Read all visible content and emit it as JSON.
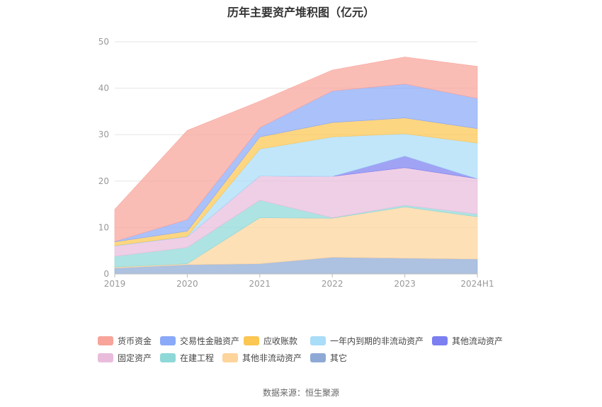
{
  "chart_data": {
    "type": "area",
    "stacked": true,
    "title": "历年主要资产堆积图（亿元）",
    "categories": [
      "2019",
      "2020",
      "2021",
      "2022",
      "2023",
      "2024H1"
    ],
    "ylim": [
      0,
      50
    ],
    "yticks": [
      0,
      10,
      20,
      30,
      40,
      50
    ],
    "grid": true,
    "legend_position": "bottom",
    "series": [
      {
        "name": "其它",
        "color": "#8ea9d6",
        "values": [
          1.3,
          2.0,
          2.2,
          3.6,
          3.4,
          3.2
        ]
      },
      {
        "name": "其他非流动资产",
        "color": "#fdd49b",
        "values": [
          0.2,
          0.2,
          9.9,
          8.4,
          11.0,
          9.1
        ]
      },
      {
        "name": "在建工程",
        "color": "#8ed8d8",
        "values": [
          2.3,
          3.5,
          3.8,
          0.1,
          0.4,
          0.6
        ]
      },
      {
        "name": "固定资产",
        "color": "#e9bcdc",
        "values": [
          2.2,
          2.3,
          5.2,
          8.9,
          8.1,
          7.6
        ]
      },
      {
        "name": "其他流动资产",
        "color": "#7b7ff0",
        "values": [
          0.0,
          0.0,
          0.0,
          0.0,
          2.5,
          0.0
        ]
      },
      {
        "name": "一年内到期的非流动资产",
        "color": "#a9ddf8",
        "values": [
          0.1,
          0.1,
          5.8,
          8.5,
          4.8,
          7.7
        ]
      },
      {
        "name": "应收账款",
        "color": "#fcc652",
        "values": [
          0.8,
          1.1,
          2.6,
          3.1,
          3.4,
          3.1
        ]
      },
      {
        "name": "交易性金融资产",
        "color": "#8aa9f8",
        "values": [
          0.1,
          2.5,
          2.0,
          6.8,
          7.3,
          6.5
        ]
      },
      {
        "name": "货币资金",
        "color": "#f8a49a",
        "values": [
          6.9,
          19.2,
          5.7,
          4.5,
          5.8,
          6.9
        ]
      }
    ]
  },
  "legend": [
    {
      "name": "货币资金",
      "color": "#f8a49a"
    },
    {
      "name": "交易性金融资产",
      "color": "#8aa9f8"
    },
    {
      "name": "应收账款",
      "color": "#fcc652"
    },
    {
      "name": "一年内到期的非流动资产",
      "color": "#a9ddf8"
    },
    {
      "name": "其他流动资产",
      "color": "#7b7ff0"
    },
    {
      "name": "固定资产",
      "color": "#e9bcdc"
    },
    {
      "name": "在建工程",
      "color": "#8ed8d8"
    },
    {
      "name": "其他非流动资产",
      "color": "#fdd49b"
    },
    {
      "name": "其它",
      "color": "#8ea9d6"
    }
  ],
  "source": "数据来源：恒生聚源"
}
